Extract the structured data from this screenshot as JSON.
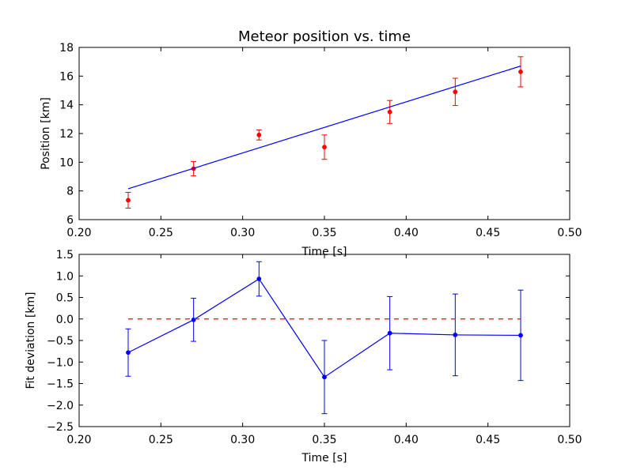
{
  "colors": {
    "fit_line": "#0000ff",
    "measurements": "#ff0000",
    "residuals": "#0000ff",
    "zero_line": "#ff0000",
    "axes": "#000000",
    "background": "#ffffff"
  },
  "chart_data": [
    {
      "type": "line",
      "title": "Meteor position vs. time",
      "xlabel": "Time [s]",
      "ylabel": "Position [km]",
      "xlim": [
        0.2,
        0.5
      ],
      "ylim": [
        6,
        18
      ],
      "xticks": [
        "0.20",
        "0.25",
        "0.30",
        "0.35",
        "0.40",
        "0.45",
        "0.50"
      ],
      "yticks": [
        "6",
        "8",
        "10",
        "12",
        "14",
        "16",
        "18"
      ],
      "grid": false,
      "legend": "none",
      "series": [
        {
          "style": "markers-with-errorbars",
          "color": "#ff0000",
          "x": [
            0.23,
            0.27,
            0.31,
            0.35,
            0.39,
            0.43,
            0.47
          ],
          "y": [
            7.35,
            9.55,
            11.9,
            11.05,
            13.5,
            14.9,
            16.3
          ],
          "yerr": [
            0.55,
            0.5,
            0.35,
            0.85,
            0.8,
            0.95,
            1.05
          ]
        },
        {
          "style": "line",
          "color": "#0000ff",
          "x": [
            0.23,
            0.47
          ],
          "y": [
            8.15,
            16.7
          ]
        }
      ]
    },
    {
      "type": "line",
      "title": "",
      "xlabel": "Time [s]",
      "ylabel": "Fit deviation [km]",
      "xlim": [
        0.2,
        0.5
      ],
      "ylim": [
        -2.5,
        1.5
      ],
      "xticks": [
        "0.20",
        "0.25",
        "0.30",
        "0.35",
        "0.40",
        "0.45",
        "0.50"
      ],
      "yticks": [
        "−2.5",
        "−2.0",
        "−1.5",
        "−1.0",
        "−0.5",
        "0.0",
        "0.5",
        "1.0",
        "1.5"
      ],
      "grid": false,
      "legend": "none",
      "series": [
        {
          "style": "line-markers-with-errorbars",
          "color": "#0000ff",
          "x": [
            0.23,
            0.27,
            0.31,
            0.35,
            0.39,
            0.43,
            0.47
          ],
          "y": [
            -0.78,
            -0.02,
            0.93,
            -1.35,
            -0.33,
            -0.37,
            -0.38
          ],
          "yerr": [
            0.55,
            0.5,
            0.4,
            0.85,
            0.85,
            0.95,
            1.05
          ]
        },
        {
          "style": "dashed-line",
          "color": "#ff0000",
          "x": [
            0.23,
            0.47
          ],
          "y": [
            0,
            0
          ]
        }
      ]
    }
  ]
}
